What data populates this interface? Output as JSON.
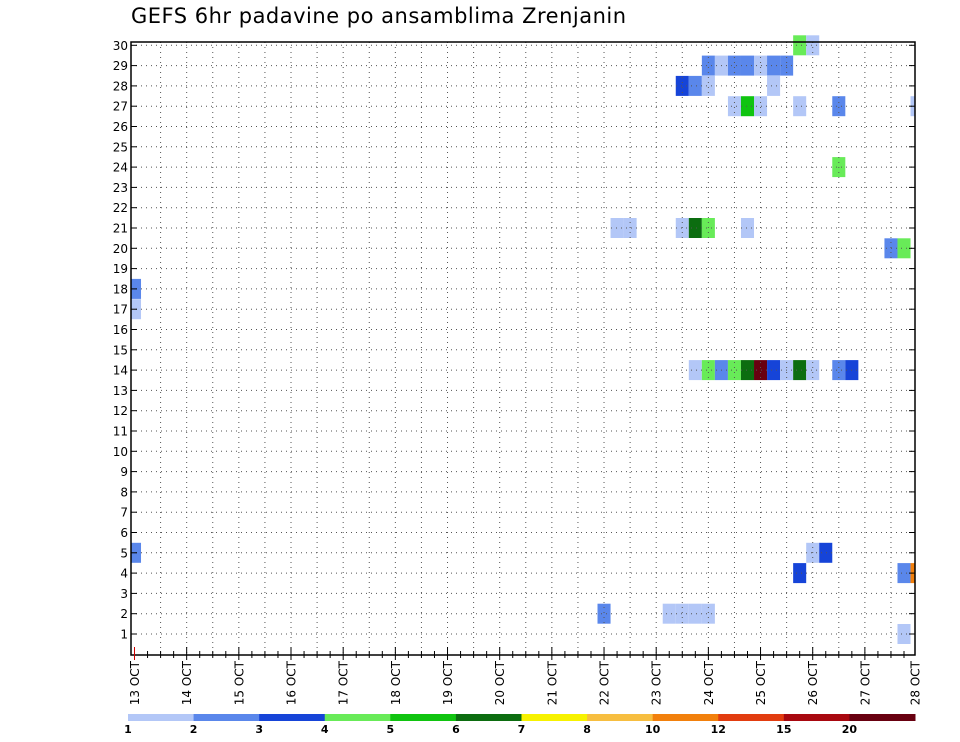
{
  "title": "GEFS 6hr padavine po ansamblima Zrenjanin",
  "chart_data": {
    "type": "heatmap",
    "title": "GEFS 6hr padavine po ansamblima Zrenjanin",
    "xlabel": "",
    "ylabel": "",
    "x_ticks": [
      "13 OCT",
      "14 OCT",
      "15 OCT",
      "16 OCT",
      "17 OCT",
      "18 OCT",
      "19 OCT",
      "20 OCT",
      "21 OCT",
      "22 OCT",
      "23 OCT",
      "24 OCT",
      "25 OCT",
      "26 OCT",
      "27 OCT",
      "28 OCT"
    ],
    "y_ticks": [
      1,
      2,
      3,
      4,
      5,
      6,
      7,
      8,
      9,
      10,
      11,
      12,
      13,
      14,
      15,
      16,
      17,
      18,
      19,
      20,
      21,
      22,
      23,
      24,
      25,
      26,
      27,
      28,
      29,
      30
    ],
    "xlim_days": [
      13,
      28
    ],
    "ylim": [
      0,
      30
    ],
    "grid": true,
    "legend": {
      "position": "bottom",
      "labels": [
        "1",
        "2",
        "3",
        "4",
        "5",
        "6",
        "7",
        "8",
        "10",
        "12",
        "15",
        "20"
      ],
      "colors": [
        "#b3c7f7",
        "#5a87eb",
        "#1644d8",
        "#68eb58",
        "#10c410",
        "#0c6d10",
        "#f7f200",
        "#f7be40",
        "#f2800c",
        "#e23c0f",
        "#a8080f",
        "#680010"
      ]
    },
    "cells": [
      {
        "t": "25 OCT 18Z",
        "m": 30,
        "c": 4
      },
      {
        "t": "26 OCT 00Z",
        "m": 30,
        "c": 1
      },
      {
        "t": "24 OCT 00Z",
        "m": 29,
        "c": 2
      },
      {
        "t": "24 OCT 06Z",
        "m": 29,
        "c": 1
      },
      {
        "t": "24 OCT 12Z",
        "m": 29,
        "c": 2
      },
      {
        "t": "24 OCT 18Z",
        "m": 29,
        "c": 2
      },
      {
        "t": "25 OCT 00Z",
        "m": 29,
        "c": 1
      },
      {
        "t": "25 OCT 06Z",
        "m": 29,
        "c": 2
      },
      {
        "t": "25 OCT 12Z",
        "m": 29,
        "c": 2
      },
      {
        "t": "23 OCT 12Z",
        "m": 28,
        "c": 3
      },
      {
        "t": "23 OCT 18Z",
        "m": 28,
        "c": 2
      },
      {
        "t": "24 OCT 00Z",
        "m": 28,
        "c": 1
      },
      {
        "t": "25 OCT 06Z",
        "m": 28,
        "c": 1
      },
      {
        "t": "24 OCT 12Z",
        "m": 27,
        "c": 1
      },
      {
        "t": "24 OCT 18Z",
        "m": 27,
        "c": 5
      },
      {
        "t": "25 OCT 00Z",
        "m": 27,
        "c": 1
      },
      {
        "t": "25 OCT 18Z",
        "m": 27,
        "c": 1
      },
      {
        "t": "26 OCT 12Z",
        "m": 27,
        "c": 2
      },
      {
        "t": "28 OCT 00Z",
        "m": 27,
        "c": 1
      },
      {
        "t": "26 OCT 12Z",
        "m": 24,
        "c": 4
      },
      {
        "t": "22 OCT 06Z",
        "m": 21,
        "c": 1
      },
      {
        "t": "22 OCT 12Z",
        "m": 21,
        "c": 1
      },
      {
        "t": "23 OCT 12Z",
        "m": 21,
        "c": 1
      },
      {
        "t": "23 OCT 18Z",
        "m": 21,
        "c": 6
      },
      {
        "t": "24 OCT 00Z",
        "m": 21,
        "c": 4
      },
      {
        "t": "24 OCT 18Z",
        "m": 21,
        "c": 1
      },
      {
        "t": "27 OCT 12Z",
        "m": 20,
        "c": 2
      },
      {
        "t": "27 OCT 18Z",
        "m": 20,
        "c": 4
      },
      {
        "t": "13 OCT 00Z",
        "m": 18,
        "c": 2
      },
      {
        "t": "13 OCT 00Z",
        "m": 17,
        "c": 1
      },
      {
        "t": "23 OCT 18Z",
        "m": 14,
        "c": 1
      },
      {
        "t": "24 OCT 00Z",
        "m": 14,
        "c": 4
      },
      {
        "t": "24 OCT 06Z",
        "m": 14,
        "c": 2
      },
      {
        "t": "24 OCT 12Z",
        "m": 14,
        "c": 4
      },
      {
        "t": "24 OCT 18Z",
        "m": 14,
        "c": 6
      },
      {
        "t": "25 OCT 00Z",
        "m": 14,
        "c": 12
      },
      {
        "t": "25 OCT 06Z",
        "m": 14,
        "c": 3
      },
      {
        "t": "25 OCT 12Z",
        "m": 14,
        "c": 1
      },
      {
        "t": "25 OCT 18Z",
        "m": 14,
        "c": 6
      },
      {
        "t": "26 OCT 00Z",
        "m": 14,
        "c": 1
      },
      {
        "t": "26 OCT 12Z",
        "m": 14,
        "c": 2
      },
      {
        "t": "26 OCT 18Z",
        "m": 14,
        "c": 3
      },
      {
        "t": "13 OCT 00Z",
        "m": 5,
        "c": 2
      },
      {
        "t": "26 OCT 00Z",
        "m": 5,
        "c": 1
      },
      {
        "t": "26 OCT 06Z",
        "m": 5,
        "c": 3
      },
      {
        "t": "25 OCT 18Z",
        "m": 4,
        "c": 3
      },
      {
        "t": "27 OCT 18Z",
        "m": 4,
        "c": 2
      },
      {
        "t": "28 OCT 00Z",
        "m": 4,
        "c": 9
      },
      {
        "t": "22 OCT 00Z",
        "m": 2,
        "c": 2
      },
      {
        "t": "23 OCT 06Z",
        "m": 2,
        "c": 1
      },
      {
        "t": "23 OCT 12Z",
        "m": 2,
        "c": 1
      },
      {
        "t": "23 OCT 18Z",
        "m": 2,
        "c": 1
      },
      {
        "t": "24 OCT 00Z",
        "m": 2,
        "c": 1
      },
      {
        "t": "27 OCT 18Z",
        "m": 1,
        "c": 1
      }
    ]
  }
}
